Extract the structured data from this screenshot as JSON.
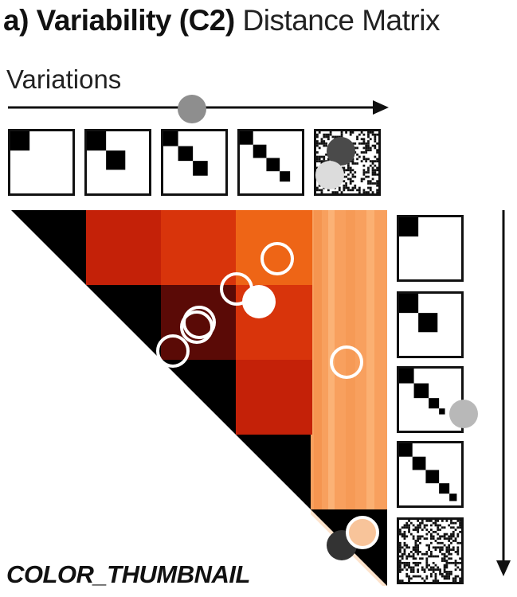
{
  "title": {
    "prefix": "a) Variability (C2)",
    "suffix": "Distance Matrix"
  },
  "axis_label": "Variations",
  "footer_label": "COLOR_THUMBNAIL",
  "thumbnails": {
    "kinds": [
      "one-block",
      "two-blocks",
      "three-blocks",
      "four-blocks",
      "noise"
    ]
  },
  "matrix": {
    "colors": {
      "diagonal": "#000000",
      "dark": "#5a0a06",
      "red_dark": "#c42108",
      "red": "#d8340b",
      "orange": "#ee6516",
      "light_orange": "#f8a05e",
      "pale": "#fde3cc"
    }
  },
  "markers": {
    "colors": {
      "medium_gray": "#8e8e8e",
      "dark_gray": "#4a4a4a",
      "light_gray": "#dcdcdc",
      "silver": "#b8b8b8",
      "white": "#ffffff",
      "charcoal": "#333333"
    }
  }
}
